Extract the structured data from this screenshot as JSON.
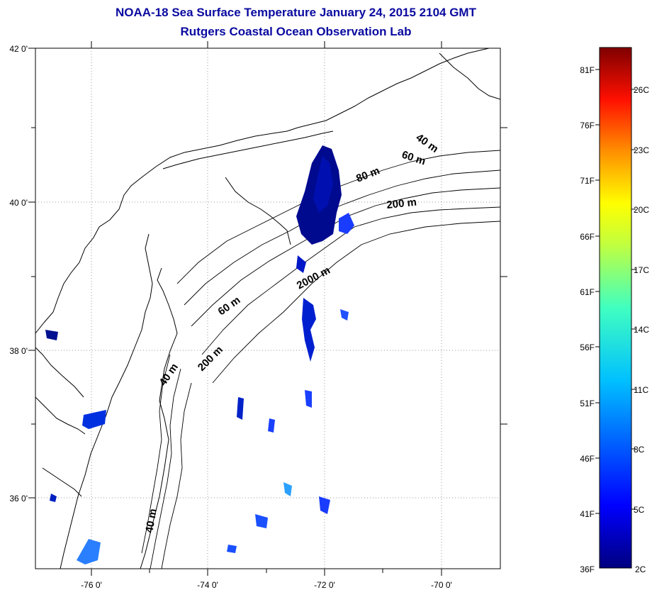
{
  "header": {
    "title": "NOAA-18 Sea Surface Temperature January 24, 2015 2104 GMT",
    "subtitle": "Rutgers Coastal Ocean Observation Lab"
  },
  "map": {
    "lon_ticks": [
      "-76 0'",
      "-74 0'",
      "-72 0'",
      "-70 0'"
    ],
    "lat_ticks": [
      "42 0'",
      "40 0'",
      "38 0'",
      "36 0'"
    ],
    "contour_labels": [
      "40 m",
      "60 m",
      "80 m",
      "200 m",
      "60 m",
      "40 m",
      "200 m",
      "2000 m",
      "40 m"
    ]
  },
  "colorbar": {
    "fahrenheit_labels": [
      "81F",
      "76F",
      "71F",
      "66F",
      "61F",
      "56F",
      "51F",
      "46F",
      "41F",
      "36F"
    ],
    "celsius_labels": [
      "26C",
      "23C",
      "20C",
      "17C",
      "14C",
      "11C",
      "8C",
      "5C",
      "2C"
    ],
    "colors": [
      "#00007f",
      "#0000ff",
      "#007fff",
      "#00ffff",
      "#7fff7f",
      "#ffff00",
      "#ff7f00",
      "#ff0000",
      "#7f0000"
    ]
  }
}
